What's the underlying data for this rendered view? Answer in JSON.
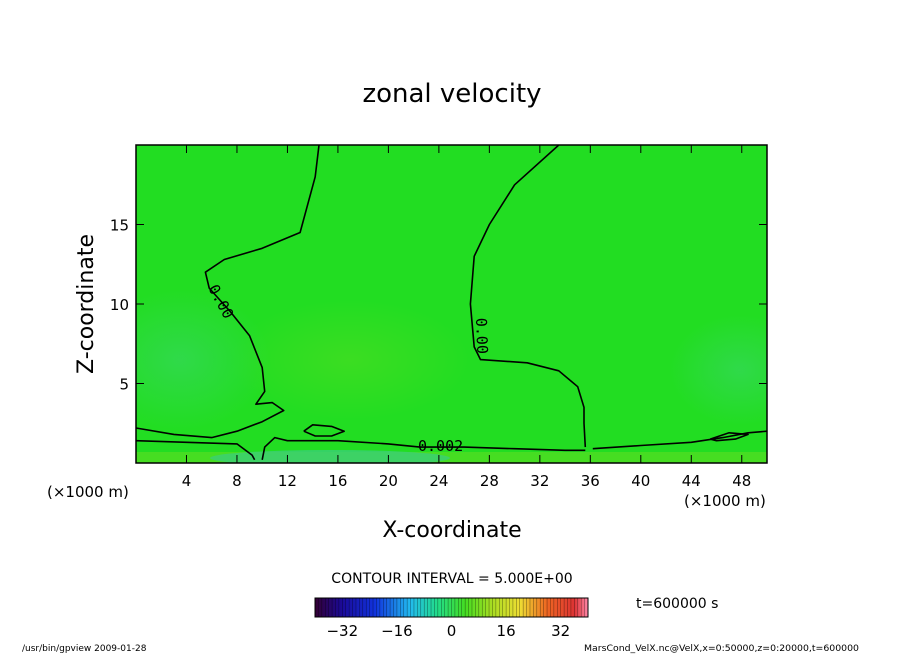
{
  "chart_data": {
    "type": "heatmap",
    "title": "zonal velocity",
    "xlabel": "X-coordinate",
    "ylabel": "Z-coordinate",
    "x_unit_left": "(×1000 m)",
    "x_unit_right": "(×1000 m)",
    "xlim": [
      0,
      50
    ],
    "ylim": [
      0,
      20
    ],
    "xticks": [
      "4",
      "8",
      "12",
      "16",
      "20",
      "24",
      "28",
      "32",
      "36",
      "40",
      "44",
      "48"
    ],
    "xtick_values": [
      4,
      8,
      12,
      16,
      20,
      24,
      28,
      32,
      36,
      40,
      44,
      48
    ],
    "yticks": [
      "5",
      "10",
      "15"
    ],
    "ytick_values": [
      5,
      10,
      15
    ],
    "field_color": "#22dd22",
    "contour_interval": "CONTOUR INTERVAL = 5.000E+00",
    "contour_labels": [
      "0.00",
      "0.00",
      "0.002"
    ],
    "time_label": "t=600000 s",
    "colorbar": {
      "range": [
        -40,
        40
      ],
      "tick_labels": [
        "−32",
        "−16",
        "0",
        "16",
        "32"
      ],
      "tick_values": [
        -32,
        -16,
        0,
        16,
        32
      ]
    },
    "contours": [
      {
        "level": 0,
        "points": [
          [
            14.5,
            20
          ],
          [
            14.2,
            18
          ],
          [
            13,
            14.5
          ],
          [
            10,
            13.5
          ],
          [
            7,
            12.8
          ],
          [
            5.5,
            12
          ],
          [
            5.8,
            11
          ],
          [
            7.5,
            9.5
          ],
          [
            9,
            8
          ],
          [
            10,
            6
          ],
          [
            10.2,
            4.5
          ],
          [
            9.5,
            3.7
          ],
          [
            10.8,
            3.8
          ],
          [
            11.7,
            3.3
          ],
          [
            10,
            2.6
          ],
          [
            8,
            2.0
          ],
          [
            6,
            1.6
          ],
          [
            3,
            1.8
          ],
          [
            0,
            2.2
          ]
        ]
      },
      {
        "level": 0,
        "points": [
          [
            33.5,
            20
          ],
          [
            30,
            17.5
          ],
          [
            28,
            15
          ],
          [
            26.8,
            13
          ],
          [
            26.5,
            10
          ],
          [
            26.8,
            7.3
          ],
          [
            27.3,
            6.5
          ],
          [
            31,
            6.3
          ],
          [
            33.5,
            5.8
          ],
          [
            35,
            4.8
          ],
          [
            35.5,
            3.5
          ],
          [
            35.5,
            2.5
          ],
          [
            35.6,
            1.0
          ]
        ]
      },
      {
        "level": 0,
        "points": [
          [
            0,
            1.4
          ],
          [
            4,
            1.3
          ],
          [
            8,
            1.2
          ],
          [
            9.2,
            0.5
          ],
          [
            9.4,
            0.2
          ]
        ]
      },
      {
        "level": 0,
        "points": [
          [
            10.0,
            0.2
          ],
          [
            10.2,
            1.0
          ],
          [
            11.0,
            1.6
          ],
          [
            12.0,
            1.4
          ],
          [
            16,
            1.4
          ],
          [
            20,
            1.2
          ],
          [
            22.5,
            1.0
          ],
          [
            26,
            1.0
          ],
          [
            30,
            0.9
          ],
          [
            34,
            0.8
          ],
          [
            35.6,
            0.8
          ]
        ]
      },
      {
        "level": 0,
        "points": [
          [
            36.2,
            0.9
          ],
          [
            40,
            1.1
          ],
          [
            44,
            1.3
          ],
          [
            46.5,
            1.6
          ],
          [
            48.5,
            1.9
          ],
          [
            50,
            2.0
          ]
        ]
      },
      {
        "level": 0,
        "points": [
          [
            13.3,
            2.0
          ],
          [
            14,
            2.4
          ],
          [
            15.5,
            2.3
          ],
          [
            16.5,
            2.0
          ],
          [
            15.5,
            1.7
          ],
          [
            14.2,
            1.7
          ],
          [
            13.3,
            2.0
          ]
        ]
      },
      {
        "level": 0,
        "points": [
          [
            45.5,
            1.5
          ],
          [
            47,
            1.9
          ],
          [
            48.5,
            1.8
          ],
          [
            47.5,
            1.5
          ],
          [
            46,
            1.4
          ],
          [
            45.5,
            1.5
          ]
        ]
      }
    ]
  },
  "footer": {
    "left": "/usr/bin/gpview  2009-01-28",
    "right": "MarsCond_VelX.nc@VelX,x=0:50000,z=0:20000,t=600000"
  }
}
